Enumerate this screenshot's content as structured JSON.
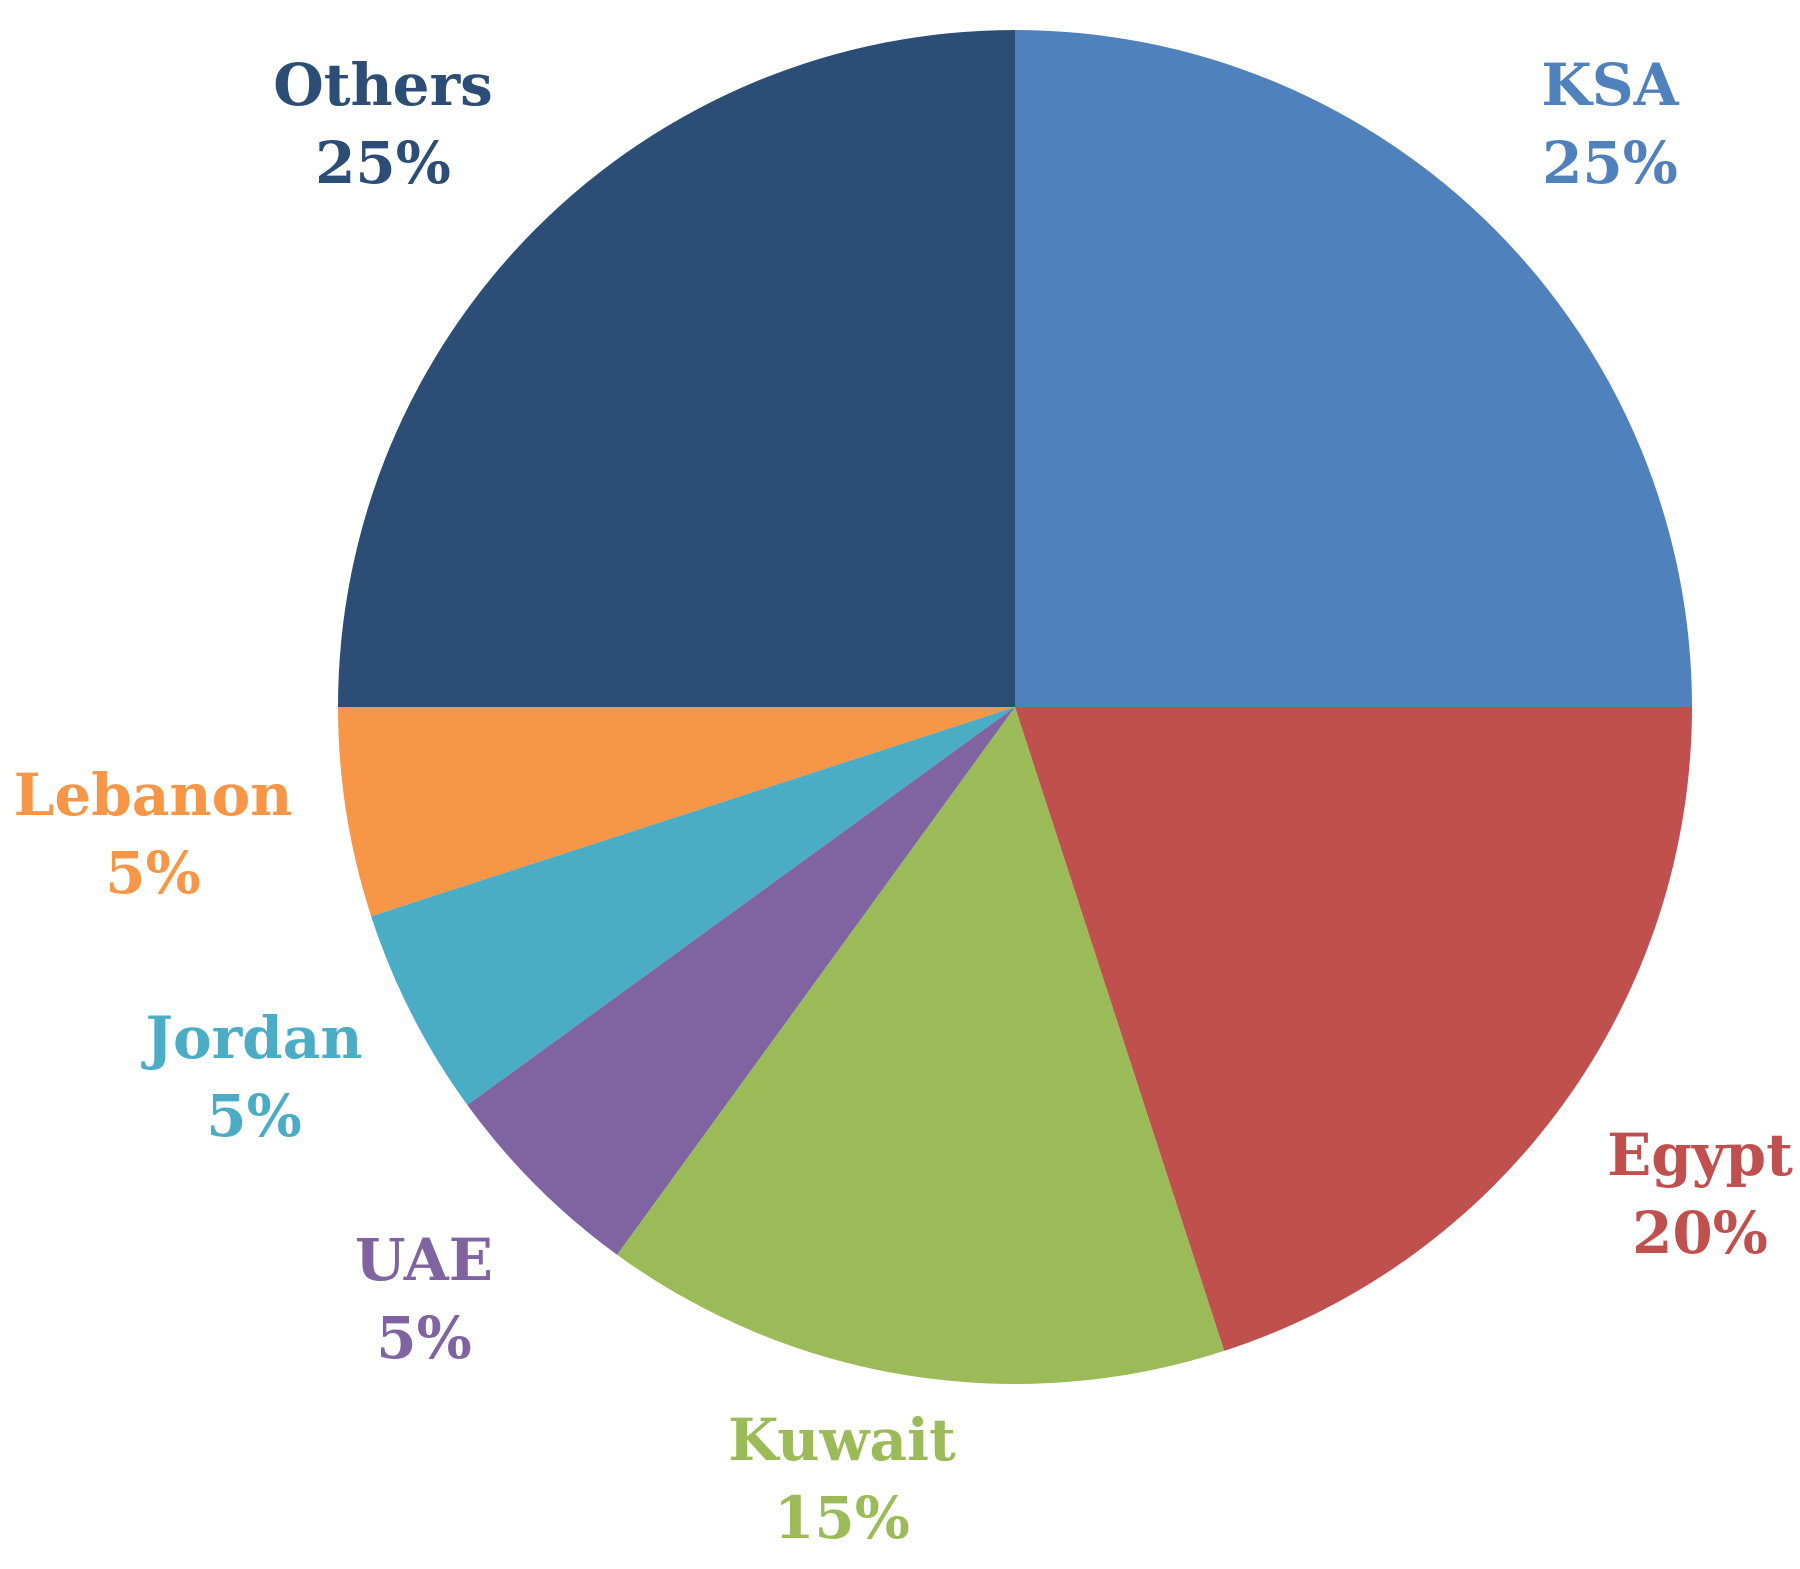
{
  "chart_data": {
    "type": "pie",
    "start_angle_deg": 0,
    "direction": "clockwise",
    "slices": [
      {
        "label": "KSA",
        "value": 25,
        "display": "25%",
        "color": "#4F81BD"
      },
      {
        "label": "Egypt",
        "value": 20,
        "display": "20%",
        "color": "#C0504D"
      },
      {
        "label": "Kuwait",
        "value": 15,
        "display": "15%",
        "color": "#9BBB59"
      },
      {
        "label": "UAE",
        "value": 5,
        "display": "5%",
        "color": "#8064A2"
      },
      {
        "label": "Jordan",
        "value": 5,
        "display": "5%",
        "color": "#4BACC6"
      },
      {
        "label": "Lebanon",
        "value": 5,
        "display": "5%",
        "color": "#F79646"
      },
      {
        "label": "Others",
        "value": 25,
        "display": "25%",
        "color": "#2C4D75"
      }
    ]
  }
}
